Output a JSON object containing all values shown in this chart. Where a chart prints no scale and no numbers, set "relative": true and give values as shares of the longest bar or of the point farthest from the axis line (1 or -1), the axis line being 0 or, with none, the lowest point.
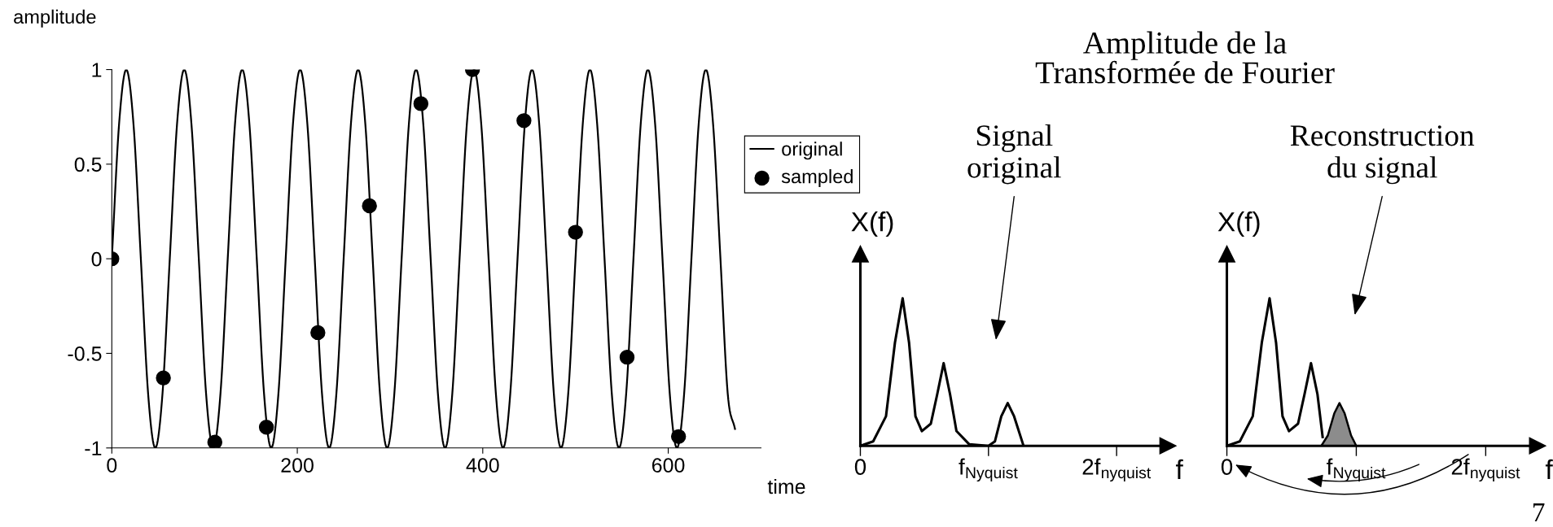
{
  "chart_data": [
    {
      "type": "line",
      "xlabel": "time",
      "ylabel": "amplitude",
      "xlim": [
        0,
        700
      ],
      "ylim": [
        -1,
        1
      ],
      "xticks": [
        0,
        200,
        400,
        600
      ],
      "yticks": [
        -1,
        -0.5,
        0,
        0.5,
        1
      ],
      "grid": false,
      "legend": "right",
      "series": [
        {
          "name": "original",
          "color": "#000000",
          "marker": "none",
          "x": [
            0,
            7.8,
            15.6,
            23.4,
            31.3,
            39.1,
            46.9,
            54.7,
            62.5,
            70.3,
            78.1,
            85.9,
            93.8,
            101.6,
            109.4,
            117.2,
            125,
            132.8,
            140.6,
            148.4,
            156.3,
            164.1,
            171.9,
            179.7,
            187.5,
            195.3,
            203.1,
            210.9,
            218.8,
            226.6,
            234.4,
            242.2,
            250,
            257.8,
            265.6,
            273.4,
            281.3,
            289.1,
            296.9,
            304.7,
            312.5,
            320.3,
            328.1,
            335.9,
            343.8,
            351.6,
            359.4,
            367.2,
            375,
            382.8,
            390.6,
            398.4,
            406.3,
            414.1,
            421.9,
            429.7,
            437.5,
            445.3,
            453.1,
            460.9,
            468.8,
            476.6,
            484.4,
            492.2,
            500,
            507.8,
            515.6,
            523.4,
            531.3,
            539.1,
            546.9,
            554.7,
            562.5,
            570.3,
            578.1,
            585.9,
            593.8,
            601.6,
            609.4,
            617.2,
            625,
            632.8,
            640.6,
            648.4,
            656.3,
            664.1,
            672
          ],
          "values": [
            0,
            0.71,
            1,
            0.71,
            0,
            -0.71,
            -1,
            -0.71,
            0,
            0.71,
            1,
            0.71,
            0,
            -0.71,
            -1,
            -0.71,
            0,
            0.71,
            1,
            0.71,
            0,
            -0.71,
            -1,
            -0.71,
            0,
            0.71,
            1,
            0.71,
            0,
            -0.71,
            -1,
            -0.71,
            0,
            0.71,
            1,
            0.71,
            0,
            -0.71,
            -1,
            -0.71,
            0,
            0.71,
            1,
            0.71,
            0,
            -0.71,
            -1,
            -0.71,
            0,
            0.71,
            1,
            0.71,
            0,
            -0.71,
            -1,
            -0.71,
            0,
            0.71,
            1,
            0.71,
            0,
            -0.71,
            -1,
            -0.71,
            0,
            0.71,
            1,
            0.71,
            0,
            -0.71,
            -1,
            -0.71,
            0,
            0.71,
            1,
            0.71,
            0,
            -0.71,
            -1,
            -0.71,
            0,
            0.71,
            1,
            0.71,
            0,
            -0.71,
            -0.9
          ]
        },
        {
          "name": "sampled",
          "type": "scatter",
          "color": "#000000",
          "marker": "circle",
          "x": [
            0,
            55.6,
            111.1,
            166.7,
            222.2,
            277.8,
            333.3,
            388.9,
            444.4,
            500,
            555.6,
            611.1
          ],
          "values": [
            0,
            -0.63,
            -0.97,
            -0.89,
            -0.39,
            0.28,
            0.82,
            1.0,
            0.73,
            0.14,
            -0.52,
            -0.94
          ]
        }
      ]
    },
    {
      "type": "line",
      "title": "Amplitude de la\nTransformée de Fourier",
      "xlabel": "f",
      "ylabel": "X(f)",
      "relative": true,
      "tick_labels": "x",
      "xlim": [
        0,
        2.4
      ],
      "xticks": [
        {
          "value": 0,
          "label": "0"
        },
        {
          "value": 1,
          "label": "f$_{Nyquist}$"
        },
        {
          "value": 2,
          "label": "2f$_{nyquist}$"
        }
      ],
      "annotations": [
        "Signal\noriginal"
      ],
      "series": [
        {
          "color": "#000000",
          "x": [
            0,
            0.1,
            0.2,
            0.27,
            0.33,
            0.38,
            0.43,
            0.48,
            0.55,
            0.6,
            0.65,
            0.7,
            0.75,
            0.85,
            1.0,
            1.05,
            1.1,
            1.15,
            1.2,
            1.27
          ],
          "values": [
            0,
            0.03,
            0.2,
            0.7,
            1,
            0.7,
            0.2,
            0.1,
            0.15,
            0.35,
            0.56,
            0.35,
            0.1,
            0.01,
            0,
            0.03,
            0.2,
            0.29,
            0.2,
            0.01
          ]
        }
      ]
    },
    {
      "type": "line",
      "xlabel": "f",
      "ylabel": "X(f)",
      "relative": true,
      "tick_labels": "x",
      "xlim": [
        0,
        2.4
      ],
      "xticks": [
        {
          "value": 0,
          "label": "0"
        },
        {
          "value": 1,
          "label": "f$_{Nyquist}$"
        },
        {
          "value": 2,
          "label": "2f$_{nyquist}$"
        }
      ],
      "annotations": [
        "Reconstruction\ndu signal",
        "7"
      ],
      "series": [
        {
          "color": "#000000",
          "x": [
            0,
            0.1,
            0.2,
            0.27,
            0.33,
            0.38,
            0.43,
            0.48,
            0.55,
            0.6,
            0.65,
            0.7,
            0.74
          ],
          "values": [
            0,
            0.03,
            0.2,
            0.7,
            1,
            0.7,
            0.2,
            0.1,
            0.15,
            0.35,
            0.56,
            0.35,
            0.06
          ]
        },
        {
          "type": "area",
          "color": "#8c8c8c",
          "x": [
            0.73,
            0.78,
            0.83,
            0.87,
            0.91,
            0.96,
            1.0
          ],
          "values": [
            0,
            0.07,
            0.22,
            0.29,
            0.22,
            0.07,
            0
          ]
        }
      ]
    }
  ]
}
